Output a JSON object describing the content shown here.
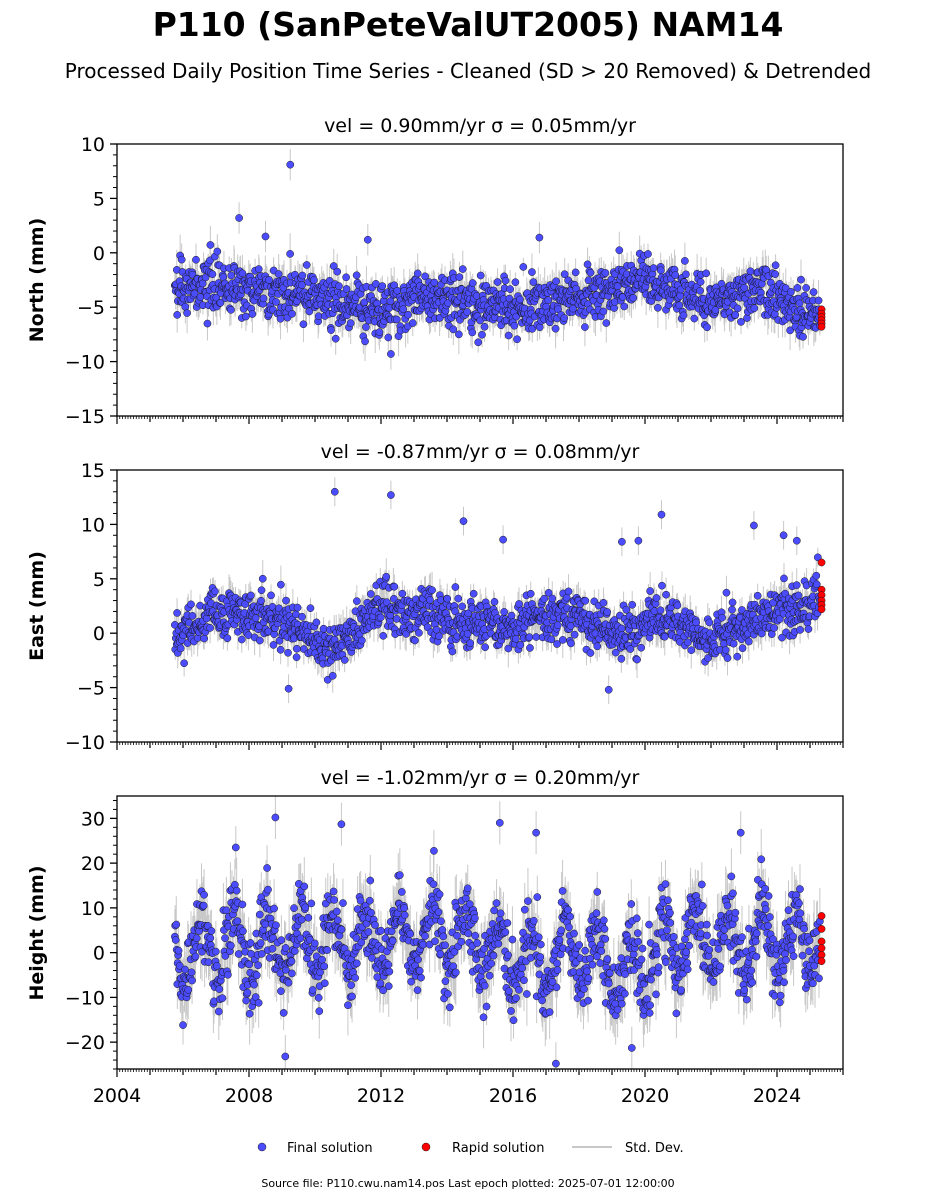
{
  "title": "P110 (SanPeteValUT2005) NAM14",
  "subtitle": "Processed Daily Position Time Series - Cleaned (SD > 20 Removed) & Detrended",
  "footer": "Source file: P110.cwu.nam14.pos  Last epoch plotted: 2025-07-01 12:00:00",
  "legend": {
    "final": "Final solution",
    "rapid": "Rapid solution",
    "std": "Std. Dev."
  },
  "colors": {
    "final": "#4c4cff",
    "rapid": "#ff0000",
    "std": "#c8c8c8",
    "edge": "#1a1a1a"
  },
  "chart_data": [
    {
      "type": "scatter",
      "title": "vel = 0.90mm/yr   σ = 0.05mm/yr",
      "ylabel": "North (mm)",
      "xlim": [
        2004,
        2026
      ],
      "ylim": [
        -15,
        10
      ],
      "yticks": [
        -15,
        -10,
        -5,
        0,
        5,
        10
      ],
      "xticks": [],
      "xticklabels": [],
      "series": [
        {
          "name": "Final solution",
          "x_start": 2005.75,
          "x_end": 2025.3,
          "trend": [
            [
              2005.75,
              -3.0
            ],
            [
              2009.5,
              -3.8
            ],
            [
              2012,
              -5.5
            ],
            [
              2013,
              -4.0
            ],
            [
              2016,
              -5.0
            ],
            [
              2018,
              -4.0
            ],
            [
              2020,
              -2.5
            ],
            [
              2022,
              -4.5
            ],
            [
              2023.5,
              -3.5
            ],
            [
              2025.3,
              -6.0
            ]
          ],
          "scatter_sd": 1.2,
          "outliers": [
            [
              2009.25,
              8.1
            ],
            [
              2007.7,
              3.2
            ],
            [
              2016.8,
              1.4
            ],
            [
              2008.5,
              1.5
            ],
            [
              2011.6,
              1.2
            ],
            [
              2012.3,
              -9.3
            ]
          ]
        },
        {
          "name": "Rapid solution",
          "x": 2025.35,
          "values": [
            -5.2,
            -5.6,
            -5.9,
            -6.2,
            -6.5,
            -6.8
          ]
        }
      ]
    },
    {
      "type": "scatter",
      "title": "vel = -0.87mm/yr   σ = 0.08mm/yr",
      "ylabel": "East (mm)",
      "xlim": [
        2004,
        2026
      ],
      "ylim": [
        -10,
        15
      ],
      "yticks": [
        -10,
        -5,
        0,
        5,
        10,
        15
      ],
      "xticks": [],
      "xticklabels": [],
      "series": [
        {
          "name": "Final solution",
          "x_start": 2005.75,
          "x_end": 2025.3,
          "trend": [
            [
              2005.75,
              -0.5
            ],
            [
              2007,
              2.0
            ],
            [
              2009,
              1.0
            ],
            [
              2010.5,
              -1.5
            ],
            [
              2012,
              2.5
            ],
            [
              2014,
              1.5
            ],
            [
              2016,
              0.5
            ],
            [
              2017.5,
              2.0
            ],
            [
              2019,
              0.0
            ],
            [
              2020.5,
              1.5
            ],
            [
              2022,
              -0.5
            ],
            [
              2023.5,
              1.5
            ],
            [
              2025.3,
              3.0
            ]
          ],
          "scatter_sd": 1.1,
          "outliers": [
            [
              2010.6,
              13.0
            ],
            [
              2012.3,
              12.7
            ],
            [
              2014.5,
              10.3
            ],
            [
              2020.5,
              10.9
            ],
            [
              2023.3,
              9.9
            ],
            [
              2024.6,
              8.5
            ],
            [
              2024.2,
              9.0
            ],
            [
              2015.7,
              8.6
            ],
            [
              2019.3,
              8.4
            ],
            [
              2019.8,
              8.5
            ],
            [
              2009.2,
              -5.1
            ],
            [
              2018.9,
              -5.2
            ]
          ]
        },
        {
          "name": "Rapid solution",
          "x": 2025.35,
          "values": [
            6.5,
            4.0,
            3.5,
            3.0,
            2.6,
            2.2
          ]
        }
      ]
    },
    {
      "type": "scatter",
      "title": "vel = -1.02mm/yr   σ = 0.20mm/yr",
      "ylabel": "Height (mm)",
      "xlim": [
        2004,
        2026
      ],
      "ylim": [
        -26,
        35
      ],
      "yticks": [
        -20,
        -10,
        0,
        10,
        20,
        30
      ],
      "xticks": [
        2004,
        2008,
        2012,
        2016,
        2020,
        2024
      ],
      "xticklabels": [
        "2004",
        "2008",
        "2012",
        "2016",
        "2020",
        "2024"
      ],
      "series": [
        {
          "name": "Final solution",
          "x_start": 2005.75,
          "x_end": 2025.3,
          "seasonal_amp": 7,
          "trend": [
            [
              2005.75,
              0.0
            ],
            [
              2010,
              2.0
            ],
            [
              2014,
              4.0
            ],
            [
              2016.5,
              -2.0
            ],
            [
              2018,
              0.0
            ],
            [
              2019.5,
              -5.0
            ],
            [
              2021,
              3.0
            ],
            [
              2023,
              2.0
            ],
            [
              2025.3,
              3.0
            ]
          ],
          "scatter_sd": 4.0,
          "outliers": [
            [
              2008.8,
              30.2
            ],
            [
              2010.8,
              28.7
            ],
            [
              2015.6,
              29.0
            ],
            [
              2022.9,
              26.8
            ],
            [
              2016.7,
              26.8
            ],
            [
              2007.6,
              23.5
            ],
            [
              2009.1,
              -23.2
            ],
            [
              2017.3,
              -24.8
            ],
            [
              2019.6,
              -21.3
            ]
          ]
        },
        {
          "name": "Rapid solution",
          "x": 2025.35,
          "values": [
            8.2,
            5.3,
            2.5,
            1.0,
            -0.5,
            -1.9
          ]
        }
      ]
    }
  ]
}
